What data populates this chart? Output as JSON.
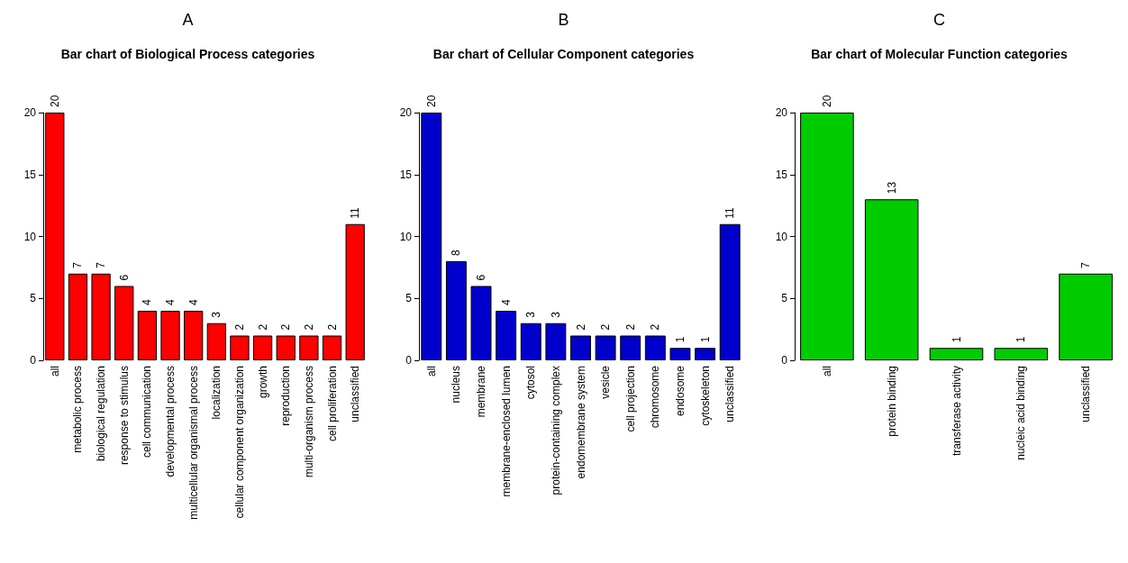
{
  "chart_data": [
    {
      "type": "bar",
      "title": "A",
      "subtitle": "Bar chart of Biological Process categories",
      "categories": [
        "all",
        "metabolic process",
        "biological regulation",
        "response to stimulus",
        "cell communication",
        "developmental process",
        "multicellular organismal process",
        "localization",
        "cellular component organization",
        "growth",
        "reproduction",
        "multi-organism process",
        "cell proliferation",
        "unclassified"
      ],
      "values": [
        20,
        7,
        7,
        6,
        4,
        4,
        4,
        3,
        2,
        2,
        2,
        2,
        2,
        11
      ],
      "color": "#ff0000",
      "ylim": [
        0,
        20
      ],
      "yticks": [
        0,
        5,
        10,
        15,
        20
      ],
      "data_labels": true
    },
    {
      "type": "bar",
      "title": "B",
      "subtitle": "Bar chart of Cellular Component categories",
      "categories": [
        "all",
        "nucleus",
        "membrane",
        "membrane-enclosed lumen",
        "cytosol",
        "protein-containing complex",
        "endomembrane system",
        "vesicle",
        "cell projection",
        "chromosome",
        "endosome",
        "cytoskeleton",
        "unclassified"
      ],
      "values": [
        20,
        8,
        6,
        4,
        3,
        3,
        2,
        2,
        2,
        2,
        1,
        1,
        11
      ],
      "color": "#0000cc",
      "ylim": [
        0,
        20
      ],
      "yticks": [
        0,
        5,
        10,
        15,
        20
      ],
      "data_labels": true
    },
    {
      "type": "bar",
      "title": "C",
      "subtitle": "Bar chart of Molecular Function categories",
      "categories": [
        "all",
        "protein binding",
        "transferase activity",
        "nucleic acid binding",
        "unclassified"
      ],
      "values": [
        20,
        13,
        1,
        1,
        7
      ],
      "color": "#00cc00",
      "ylim": [
        0,
        20
      ],
      "yticks": [
        0,
        5,
        10,
        15,
        20
      ],
      "data_labels": true
    }
  ]
}
